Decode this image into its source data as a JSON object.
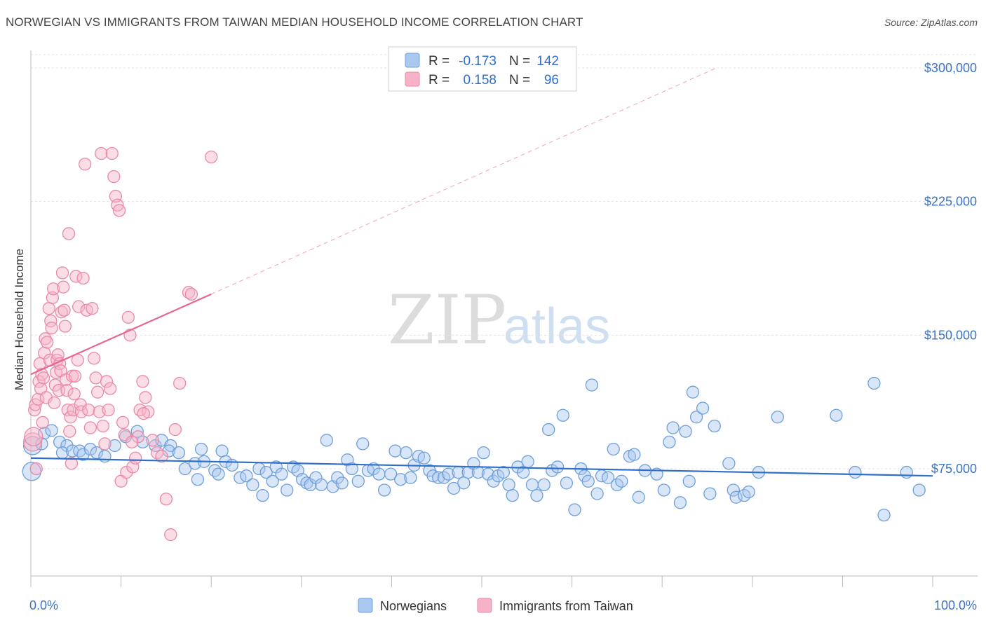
{
  "title": "NORWEGIAN VS IMMIGRANTS FROM TAIWAN MEDIAN HOUSEHOLD INCOME CORRELATION CHART",
  "source": "Source: ZipAtlas.com",
  "watermark": {
    "zip": "ZIP",
    "atlas": "atlas"
  },
  "colors": {
    "blue_fill": "#a9c8ef",
    "blue_stroke": "#6f9fdb",
    "blue_line": "#2f6fca",
    "pink_fill": "#f6b3c8",
    "pink_stroke": "#ea89a8",
    "pink_line": "#e76592",
    "label_blue": "#3c73c2",
    "grid": "#e3e3e3"
  },
  "legend": {
    "rows": [
      {
        "r_label": "R =",
        "r_value": "-0.173",
        "n_label": "N =",
        "n_value": "142"
      },
      {
        "r_label": "R =",
        "r_value": "0.158",
        "n_label": "N =",
        "n_value": "96"
      }
    ]
  },
  "chart_data": {
    "type": "scatter",
    "title": "NORWEGIAN VS IMMIGRANTS FROM TAIWAN MEDIAN HOUSEHOLD INCOME CORRELATION CHART",
    "xlabel": "",
    "ylabel": "Median Household Income",
    "xlim": [
      0,
      100
    ],
    "ylim": [
      15000,
      310000
    ],
    "x_tick_labels": [
      "0.0%",
      "100.0%"
    ],
    "y_ticks": [
      75000,
      150000,
      225000,
      300000
    ],
    "y_tick_labels": [
      "$75,000",
      "$150,000",
      "$225,000",
      "$300,000"
    ],
    "grid": true,
    "legend_position": "top-center",
    "series": [
      {
        "name": "Norwegians",
        "r": -0.173,
        "n": 142,
        "trend": {
          "x0": 0,
          "y0": 81000,
          "x1": 100,
          "y1": 71000
        },
        "points": [
          [
            0.2,
            88000
          ],
          [
            0.1,
            73500
          ],
          [
            1.5,
            95000
          ],
          [
            2.3,
            96500
          ],
          [
            1.2,
            89000
          ],
          [
            3.2,
            90000
          ],
          [
            4.0,
            88000
          ],
          [
            3.5,
            84000
          ],
          [
            4.6,
            85000
          ],
          [
            5.4,
            85000
          ],
          [
            5.8,
            83000
          ],
          [
            6.6,
            86000
          ],
          [
            7.3,
            84000
          ],
          [
            8.2,
            82000
          ],
          [
            9.3,
            88000
          ],
          [
            10.5,
            93000
          ],
          [
            11.8,
            96000
          ],
          [
            12.4,
            90000
          ],
          [
            13.8,
            88000
          ],
          [
            14.5,
            91000
          ],
          [
            15.5,
            88000
          ],
          [
            15.3,
            85000
          ],
          [
            16.4,
            84000
          ],
          [
            17.1,
            75000
          ],
          [
            18.2,
            78000
          ],
          [
            18.5,
            69000
          ],
          [
            18.9,
            86000
          ],
          [
            19.2,
            79000
          ],
          [
            20.4,
            74000
          ],
          [
            20.8,
            72000
          ],
          [
            21.2,
            85000
          ],
          [
            21.6,
            79000
          ],
          [
            22.3,
            77000
          ],
          [
            23.2,
            70000
          ],
          [
            23.9,
            71000
          ],
          [
            24.6,
            66000
          ],
          [
            25.3,
            75000
          ],
          [
            25.7,
            60000
          ],
          [
            26.1,
            73000
          ],
          [
            26.8,
            68000
          ],
          [
            27.2,
            76000
          ],
          [
            27.8,
            72000
          ],
          [
            28.4,
            63000
          ],
          [
            29.1,
            76000
          ],
          [
            29.6,
            74000
          ],
          [
            30.1,
            69000
          ],
          [
            30.6,
            67000
          ],
          [
            31.0,
            66000
          ],
          [
            31.6,
            70000
          ],
          [
            32.2,
            66000
          ],
          [
            32.8,
            91000
          ],
          [
            33.5,
            65000
          ],
          [
            34.0,
            70000
          ],
          [
            34.5,
            67000
          ],
          [
            35.1,
            80000
          ],
          [
            35.6,
            75000
          ],
          [
            36.3,
            68000
          ],
          [
            36.8,
            89000
          ],
          [
            37.4,
            74000
          ],
          [
            38.0,
            75000
          ],
          [
            38.6,
            72000
          ],
          [
            39.2,
            63000
          ],
          [
            39.9,
            72000
          ],
          [
            40.4,
            85000
          ],
          [
            41.0,
            69000
          ],
          [
            41.6,
            84000
          ],
          [
            42.1,
            70000
          ],
          [
            42.5,
            77000
          ],
          [
            43.0,
            82000
          ],
          [
            43.6,
            81000
          ],
          [
            44.2,
            74000
          ],
          [
            44.6,
            71000
          ],
          [
            45.2,
            70000
          ],
          [
            45.8,
            70000
          ],
          [
            46.3,
            72000
          ],
          [
            46.9,
            64000
          ],
          [
            47.4,
            73000
          ],
          [
            48.0,
            67000
          ],
          [
            48.5,
            73000
          ],
          [
            49.1,
            78000
          ],
          [
            49.6,
            73000
          ],
          [
            50.2,
            84000
          ],
          [
            50.7,
            72000
          ],
          [
            51.3,
            68000
          ],
          [
            51.8,
            71000
          ],
          [
            52.4,
            73000
          ],
          [
            53.0,
            66000
          ],
          [
            53.4,
            60000
          ],
          [
            54.0,
            76000
          ],
          [
            54.6,
            73000
          ],
          [
            55.1,
            79000
          ],
          [
            55.6,
            66000
          ],
          [
            56.1,
            60000
          ],
          [
            56.9,
            66000
          ],
          [
            57.4,
            97000
          ],
          [
            57.8,
            74000
          ],
          [
            58.4,
            76000
          ],
          [
            59.0,
            105000
          ],
          [
            59.4,
            67000
          ],
          [
            60.3,
            52000
          ],
          [
            61.0,
            75000
          ],
          [
            61.4,
            71000
          ],
          [
            61.8,
            68000
          ],
          [
            62.2,
            122000
          ],
          [
            62.8,
            61000
          ],
          [
            63.3,
            71000
          ],
          [
            64.0,
            70000
          ],
          [
            64.6,
            86000
          ],
          [
            65.0,
            66000
          ],
          [
            65.5,
            68000
          ],
          [
            66.4,
            82000
          ],
          [
            66.9,
            83000
          ],
          [
            67.4,
            59000
          ],
          [
            68.1,
            74000
          ],
          [
            69.4,
            72000
          ],
          [
            70.2,
            63000
          ],
          [
            70.8,
            90000
          ],
          [
            71.2,
            98000
          ],
          [
            72.0,
            56000
          ],
          [
            72.6,
            96000
          ],
          [
            73.0,
            68000
          ],
          [
            73.4,
            118000
          ],
          [
            73.8,
            104000
          ],
          [
            74.5,
            109000
          ],
          [
            75.3,
            61000
          ],
          [
            75.8,
            99000
          ],
          [
            77.4,
            78000
          ],
          [
            77.9,
            63000
          ],
          [
            78.2,
            59000
          ],
          [
            79.1,
            60000
          ],
          [
            79.6,
            62000
          ],
          [
            80.7,
            73000
          ],
          [
            82.8,
            104000
          ],
          [
            89.3,
            105000
          ],
          [
            91.4,
            73000
          ],
          [
            93.5,
            123000
          ],
          [
            97.1,
            73000
          ],
          [
            98.5,
            63000
          ],
          [
            94.6,
            49000
          ]
        ]
      },
      {
        "name": "Immigrants from Taiwan",
        "r": 0.158,
        "n": 96,
        "trend": {
          "x0": 0,
          "y0": 128000,
          "x1": 20,
          "y1": 173000,
          "x_dash_end": 76,
          "y_dash_end": 300000
        },
        "points": [
          [
            0.2,
            90000
          ],
          [
            0.3,
            93000
          ],
          [
            0.4,
            108000
          ],
          [
            0.5,
            111000
          ],
          [
            0.6,
            75000
          ],
          [
            0.8,
            114000
          ],
          [
            0.9,
            124000
          ],
          [
            1.0,
            134000
          ],
          [
            1.1,
            120000
          ],
          [
            1.2,
            128000
          ],
          [
            1.3,
            101000
          ],
          [
            1.4,
            126000
          ],
          [
            1.5,
            140000
          ],
          [
            1.6,
            148000
          ],
          [
            1.7,
            115000
          ],
          [
            1.8,
            146000
          ],
          [
            2.0,
            165000
          ],
          [
            2.1,
            136000
          ],
          [
            2.2,
            158000
          ],
          [
            2.3,
            154000
          ],
          [
            2.4,
            171000
          ],
          [
            2.5,
            176000
          ],
          [
            2.6,
            112000
          ],
          [
            2.7,
            122000
          ],
          [
            2.8,
            129000
          ],
          [
            2.9,
            136000
          ],
          [
            3.0,
            139000
          ],
          [
            3.1,
            119000
          ],
          [
            3.2,
            134000
          ],
          [
            3.3,
            130000
          ],
          [
            3.4,
            163000
          ],
          [
            3.5,
            185000
          ],
          [
            3.6,
            177000
          ],
          [
            3.7,
            164000
          ],
          [
            3.8,
            155000
          ],
          [
            3.9,
            125000
          ],
          [
            4.0,
            119000
          ],
          [
            4.1,
            108000
          ],
          [
            4.2,
            207000
          ],
          [
            4.3,
            96000
          ],
          [
            4.4,
            104000
          ],
          [
            4.5,
            78000
          ],
          [
            4.6,
            127000
          ],
          [
            4.7,
            108000
          ],
          [
            4.8,
            117000
          ],
          [
            4.9,
            127000
          ],
          [
            5.0,
            183000
          ],
          [
            5.2,
            136000
          ],
          [
            5.3,
            166000
          ],
          [
            5.5,
            111000
          ],
          [
            5.6,
            107000
          ],
          [
            5.8,
            182000
          ],
          [
            6.0,
            246000
          ],
          [
            6.2,
            164000
          ],
          [
            6.4,
            108000
          ],
          [
            6.6,
            98000
          ],
          [
            6.8,
            165000
          ],
          [
            7.0,
            137000
          ],
          [
            7.2,
            126000
          ],
          [
            7.4,
            118000
          ],
          [
            7.6,
            107000
          ],
          [
            7.8,
            252000
          ],
          [
            8.0,
            99000
          ],
          [
            8.2,
            89000
          ],
          [
            8.4,
            124000
          ],
          [
            8.6,
            108000
          ],
          [
            8.8,
            120000
          ],
          [
            9.0,
            252000
          ],
          [
            9.2,
            239000
          ],
          [
            9.4,
            228000
          ],
          [
            9.6,
            223000
          ],
          [
            9.8,
            220000
          ],
          [
            10.0,
            68000
          ],
          [
            10.2,
            101000
          ],
          [
            10.4,
            94000
          ],
          [
            10.6,
            73000
          ],
          [
            10.8,
            160000
          ],
          [
            11.0,
            150000
          ],
          [
            11.3,
            76000
          ],
          [
            11.6,
            81000
          ],
          [
            11.9,
            93000
          ],
          [
            12.1,
            108000
          ],
          [
            12.4,
            124000
          ],
          [
            12.7,
            115000
          ],
          [
            13.0,
            107000
          ],
          [
            13.5,
            91000
          ],
          [
            14.0,
            84000
          ],
          [
            14.5,
            82000
          ],
          [
            15.0,
            58000
          ],
          [
            15.5,
            38000
          ],
          [
            16.5,
            123000
          ],
          [
            17.5,
            174000
          ],
          [
            17.8,
            173000
          ],
          [
            20.0,
            250000
          ],
          [
            12.5,
            106000
          ],
          [
            11.2,
            90000
          ],
          [
            16.0,
            97000
          ]
        ]
      }
    ]
  }
}
